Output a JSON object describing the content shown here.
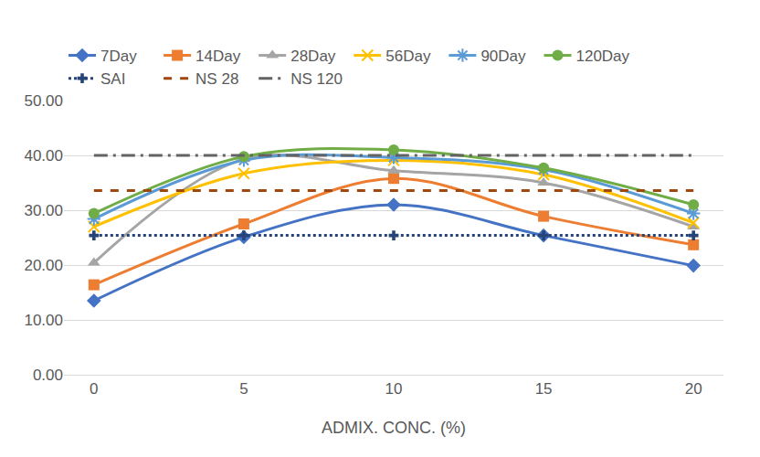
{
  "chart_data": {
    "type": "line",
    "x_label": "ADMIX. CONC. (%)",
    "x": [
      0,
      5,
      10,
      15,
      20
    ],
    "xlim": [
      -1,
      21
    ],
    "xticks": [
      0,
      5,
      10,
      15,
      20
    ],
    "ylim": [
      0,
      50
    ],
    "yticks": [
      {
        "value": 0,
        "label": "0.00"
      },
      {
        "value": 10,
        "label": "10.00"
      },
      {
        "value": 20,
        "label": "20.00"
      },
      {
        "value": 30,
        "label": "30.00"
      },
      {
        "value": 40,
        "label": "40.00"
      },
      {
        "value": 50,
        "label": "50.00"
      }
    ],
    "grid": true,
    "legend": "top",
    "series": [
      {
        "name": "7Day",
        "color": "#4472c4",
        "marker": "diamond",
        "line_style": "solid",
        "values": [
          13.5,
          25.1,
          31.0,
          25.4,
          19.9
        ]
      },
      {
        "name": "14Day",
        "color": "#ed7d31",
        "marker": "square",
        "line_style": "solid",
        "values": [
          16.4,
          27.5,
          35.8,
          28.9,
          23.7
        ]
      },
      {
        "name": "28Day",
        "color": "#a5a5a5",
        "marker": "triangle-up",
        "line_style": "solid",
        "values": [
          20.4,
          39.3,
          37.2,
          35.0,
          27.0
        ]
      },
      {
        "name": "56Day",
        "color": "#ffc000",
        "marker": "x",
        "line_style": "solid",
        "values": [
          27.0,
          36.7,
          39.1,
          36.5,
          27.7
        ]
      },
      {
        "name": "90Day",
        "color": "#5b9bd5",
        "marker": "asterisk",
        "line_style": "solid",
        "values": [
          28.4,
          39.1,
          39.6,
          37.4,
          29.4
        ]
      },
      {
        "name": "120Day",
        "color": "#70ad47",
        "marker": "circle",
        "line_style": "solid",
        "values": [
          29.4,
          39.8,
          41.0,
          37.7,
          31.0
        ]
      },
      {
        "name": "SAI",
        "color": "#264478",
        "marker": "cross",
        "line_style": "dotted",
        "values": [
          25.4,
          25.4,
          25.4,
          25.4,
          25.4
        ]
      },
      {
        "name": "NS 28",
        "color": "#9e480e",
        "marker": "none",
        "line_style": "dashed",
        "values": [
          33.6,
          33.6,
          33.6,
          33.6,
          33.6
        ]
      },
      {
        "name": "NS 120",
        "color": "#636363",
        "marker": "none",
        "line_style": "dashdot",
        "values": [
          40,
          40,
          40,
          40,
          40
        ]
      }
    ]
  }
}
